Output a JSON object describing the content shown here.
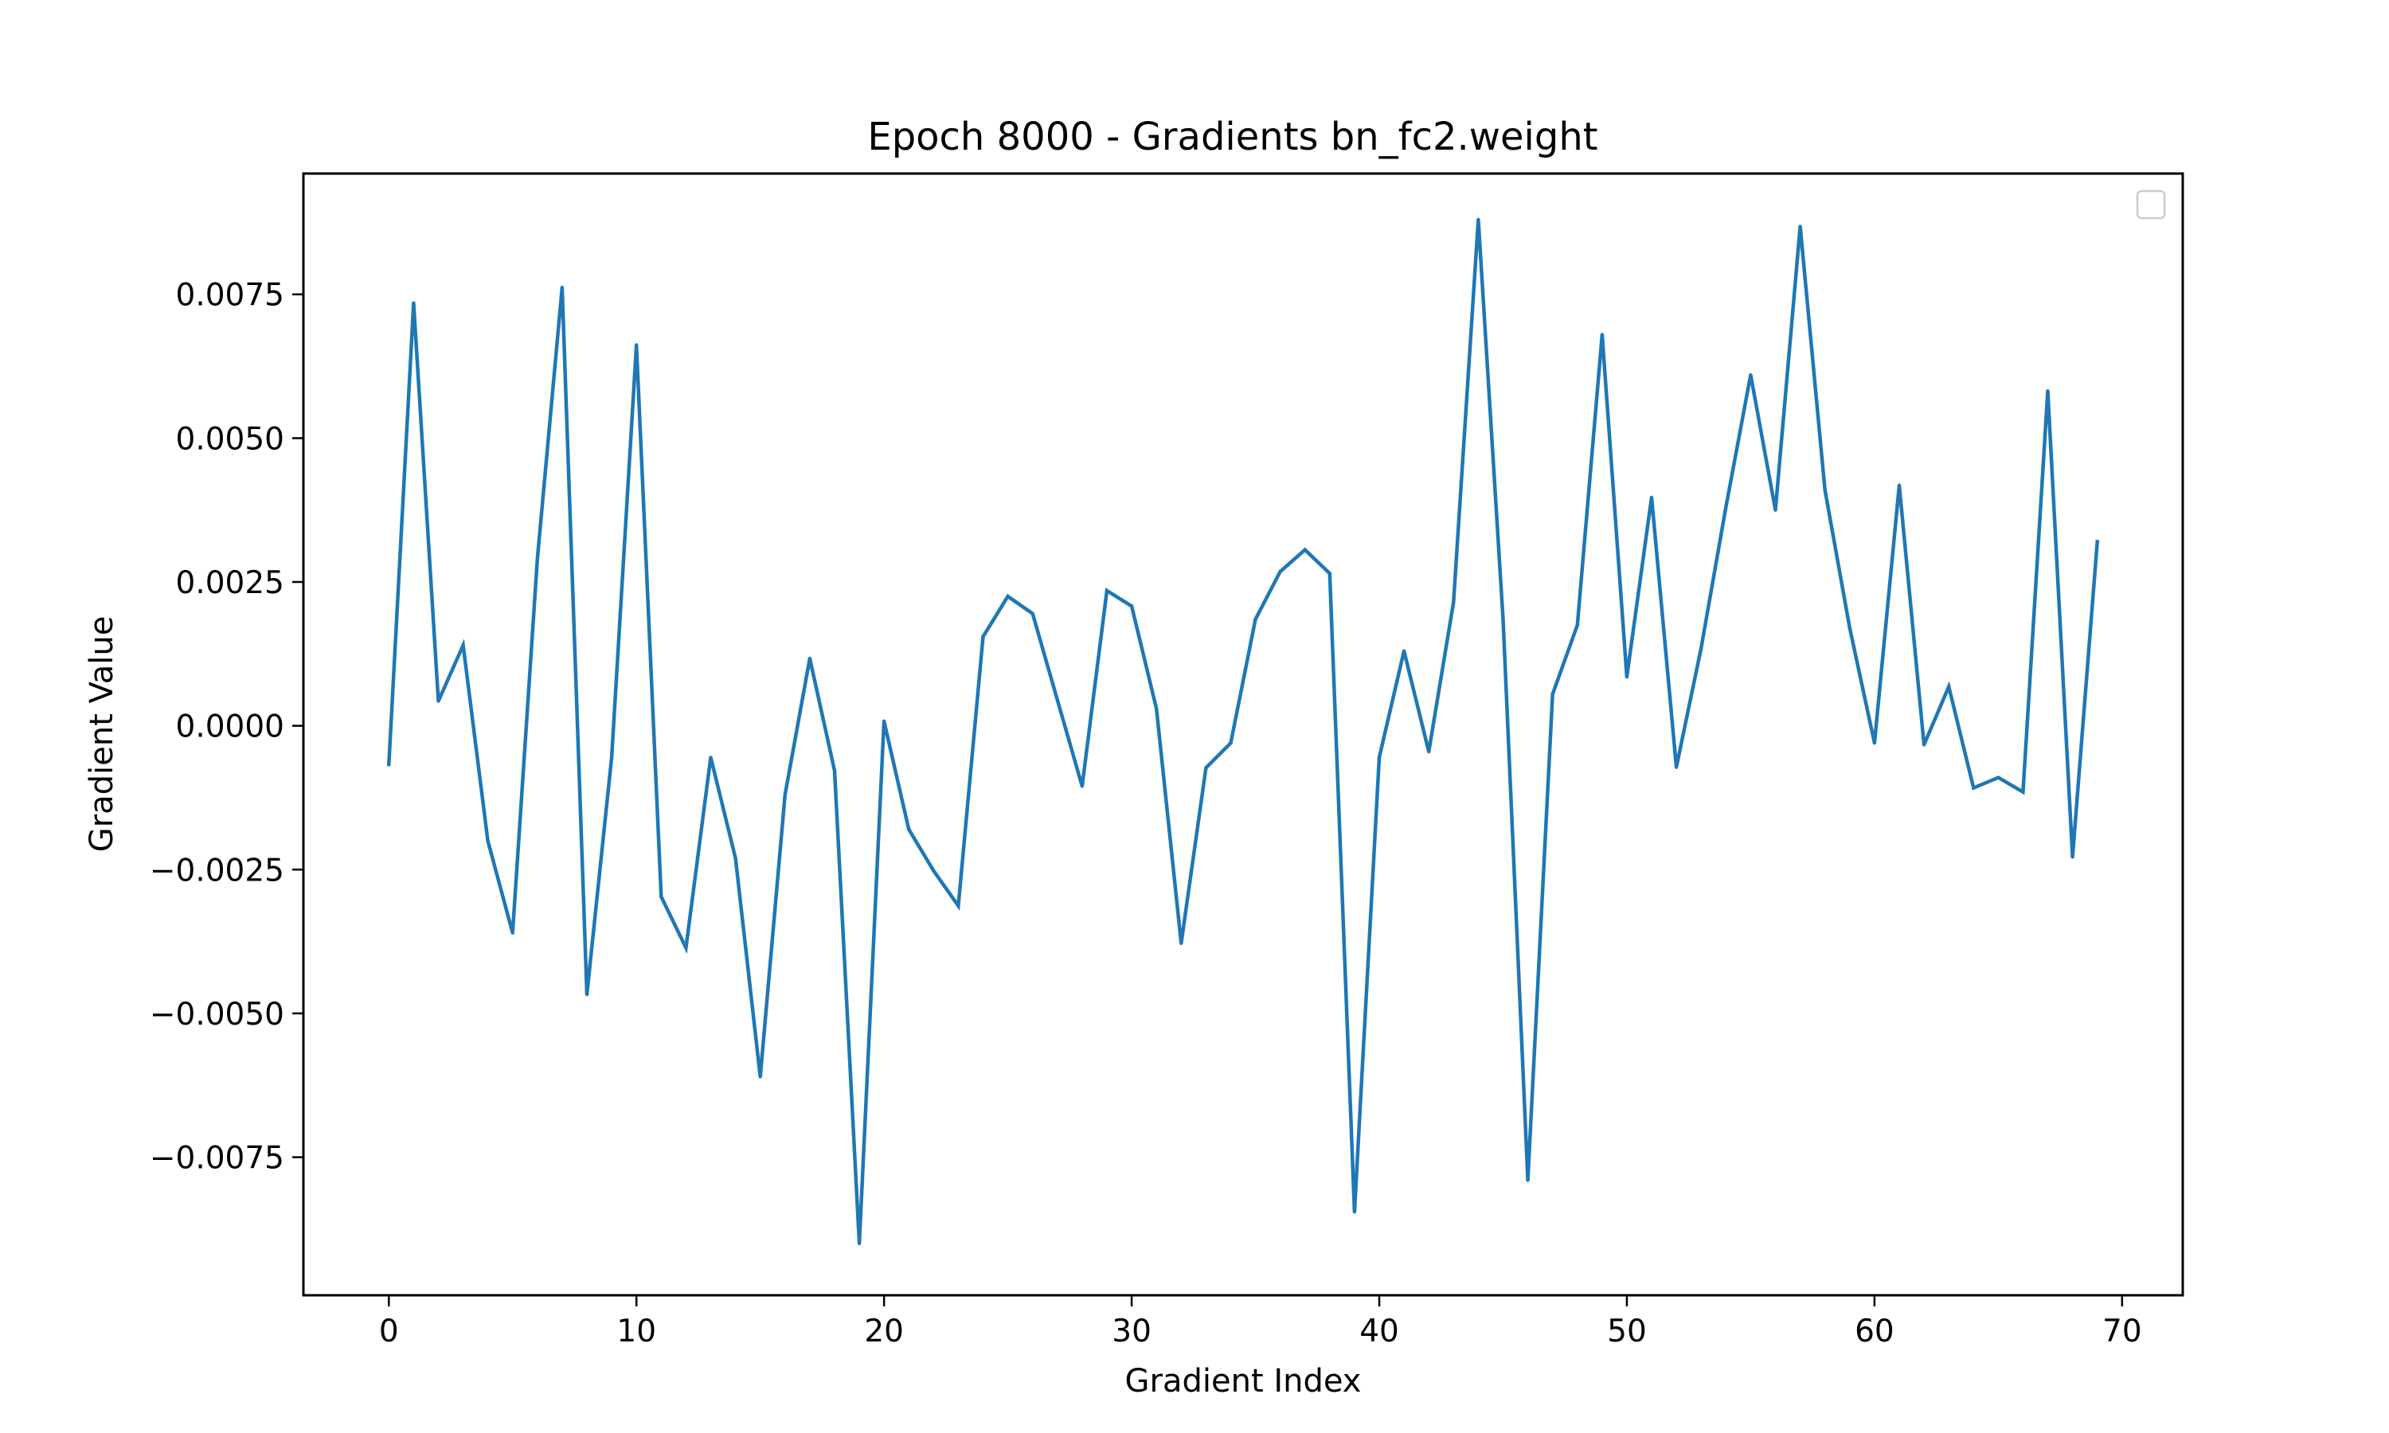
{
  "chart_data": {
    "type": "line",
    "title": "Epoch 8000 - Gradients bn_fc2.weight",
    "xlabel": "Gradient Index",
    "ylabel": "Gradient Value",
    "xlim": [
      -3.45,
      72.45
    ],
    "ylim": [
      -0.0099,
      0.0096
    ],
    "xticks": [
      0,
      10,
      20,
      30,
      40,
      50,
      60,
      70
    ],
    "xtick_labels": [
      "0",
      "10",
      "20",
      "30",
      "40",
      "50",
      "60",
      "70"
    ],
    "yticks": [
      -0.0075,
      -0.005,
      -0.0025,
      0.0,
      0.0025,
      0.005,
      0.0075
    ],
    "ytick_labels": [
      "−0.0075",
      "−0.0050",
      "−0.0025",
      "0.0000",
      "0.0025",
      "0.0050",
      "0.0075"
    ],
    "grid": false,
    "legend": {
      "placement": "top-right",
      "entries": []
    },
    "series_color": "#1f77b4",
    "series": [
      {
        "x": [
          0,
          1,
          2,
          3,
          4,
          5,
          6,
          7,
          8,
          9,
          10,
          11,
          12,
          13,
          14,
          15,
          16,
          17,
          18,
          19,
          20,
          21,
          22,
          23,
          24,
          25,
          26,
          27,
          28,
          29,
          30,
          31,
          32,
          33,
          34,
          35,
          36,
          37,
          38,
          39,
          40,
          41,
          42,
          43,
          44,
          45,
          46,
          47,
          48,
          49,
          50,
          51,
          52,
          53,
          54,
          55,
          56,
          57,
          58,
          59,
          60,
          61,
          62,
          63,
          64,
          65,
          66,
          67,
          68,
          69
        ],
        "values": [
          -0.00067,
          0.00735,
          0.00043,
          0.0014,
          -0.002,
          -0.0036,
          0.0029,
          0.00762,
          -0.00467,
          -0.00055,
          0.00662,
          -0.00297,
          -0.00386,
          -0.00055,
          -0.0023,
          -0.0061,
          -0.0012,
          0.00117,
          -0.00078,
          -0.009,
          8e-05,
          -0.0018,
          -0.00252,
          -0.00313,
          0.00155,
          0.00225,
          0.00195,
          0.00045,
          -0.00105,
          0.00235,
          0.00208,
          0.0003,
          -0.00378,
          -0.00073,
          -0.0003,
          0.00185,
          0.00268,
          0.00306,
          0.00265,
          -0.00845,
          -0.00055,
          0.0013,
          -0.00045,
          0.00215,
          0.0088,
          0.00185,
          -0.0079,
          0.00055,
          0.00175,
          0.0068,
          0.00085,
          0.00397,
          -0.00072,
          0.00135,
          0.0038,
          0.0061,
          0.00375,
          0.00868,
          0.0041,
          0.0017,
          -0.0003,
          0.00418,
          -0.00033,
          0.00068,
          -0.00108,
          -0.0009,
          -0.00115,
          0.00582,
          -0.00228,
          0.0032
        ]
      }
    ]
  }
}
